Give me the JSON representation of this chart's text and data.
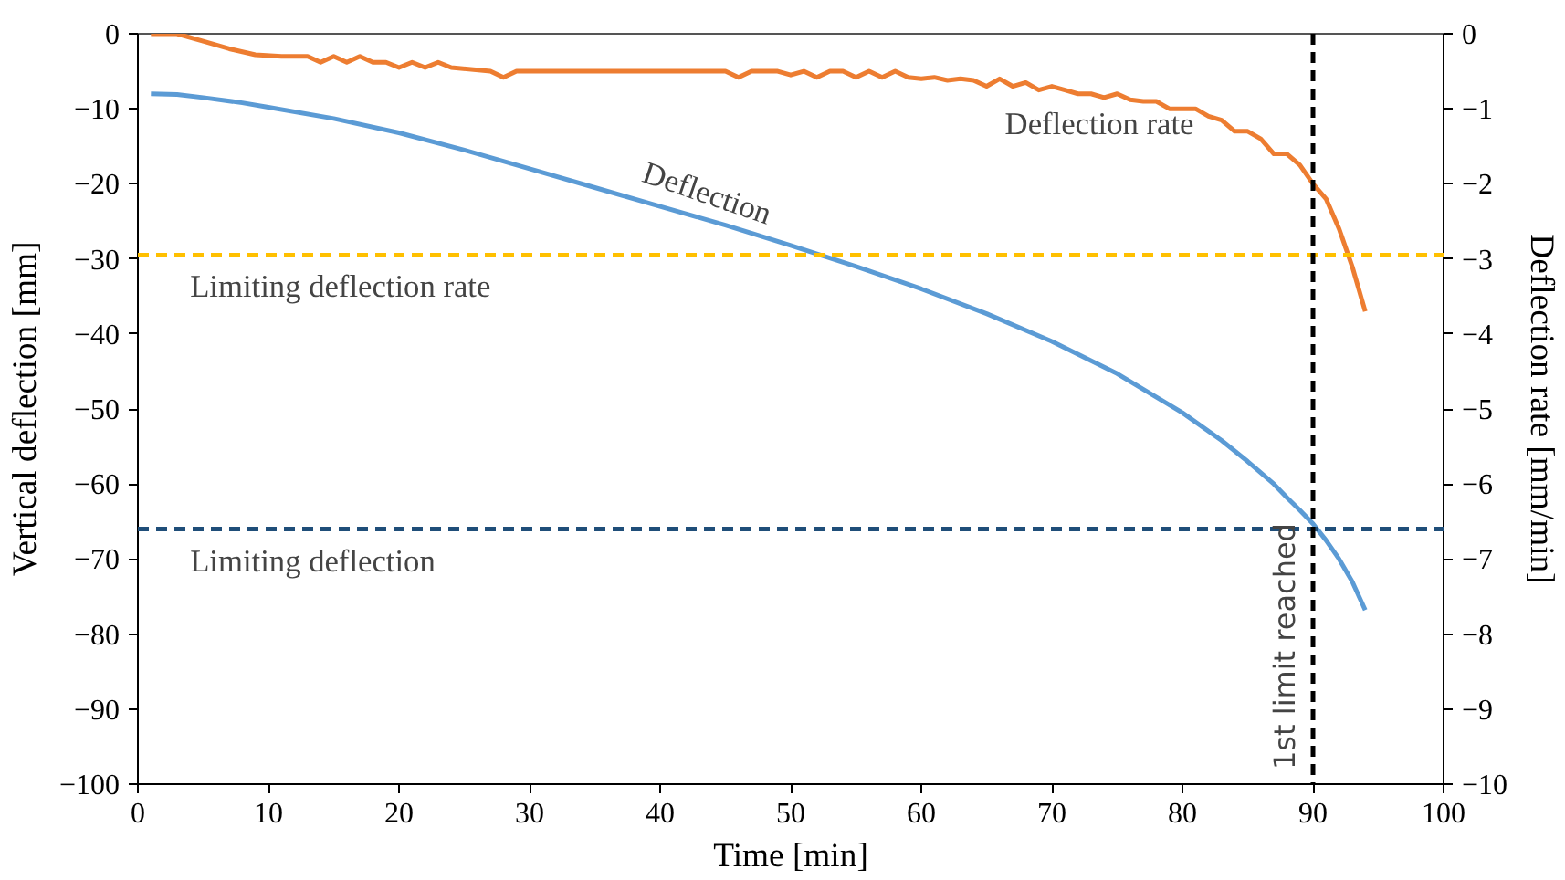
{
  "chart_data": {
    "type": "line",
    "xlabel": "Time [min]",
    "ylabel": "Vertical deflection [mm]",
    "y2label": "Deflection rate [mm/min]",
    "xlim": [
      0,
      100
    ],
    "xticks": [
      0,
      10,
      20,
      30,
      40,
      50,
      60,
      70,
      80,
      90,
      100
    ],
    "ylim": [
      -100,
      0
    ],
    "yticks": [
      -100,
      -90,
      -80,
      -70,
      -60,
      -50,
      -40,
      -30,
      -20,
      -10,
      0
    ],
    "y2lim": [
      -10,
      0
    ],
    "y2ticks": [
      -10,
      -9,
      -8,
      -7,
      -6,
      -5,
      -4,
      -3,
      -2,
      -1,
      0
    ],
    "grid": false,
    "marker": "none",
    "line_style": "solid",
    "series": [
      {
        "name": "Deflection",
        "color": "#5b9bd5",
        "x": [
          1,
          3,
          5,
          8,
          10,
          15,
          20,
          25,
          30,
          35,
          40,
          45,
          50,
          55,
          60,
          65,
          70,
          75,
          80,
          83,
          85,
          87,
          88,
          89,
          90,
          91,
          92,
          93,
          94
        ],
        "values": [
          -8,
          -8.1,
          -8.5,
          -9.2,
          -9.8,
          -11.3,
          -13.2,
          -15.5,
          -18,
          -20.5,
          -23,
          -25.5,
          -28.2,
          -31,
          -34,
          -37.3,
          -41,
          -45.3,
          -50.5,
          -54.2,
          -57,
          -60,
          -61.8,
          -63.5,
          -65.3,
          -67.5,
          -70,
          -73,
          -76.8
        ]
      },
      {
        "name": "Deflection rate",
        "color": "#ed7d31",
        "axis": "y2",
        "x": [
          1,
          3,
          5,
          7,
          9,
          11,
          12,
          13,
          14,
          15,
          16,
          17,
          18,
          19,
          20,
          21,
          22,
          23,
          24,
          27,
          28,
          29,
          35,
          36,
          45,
          46,
          47,
          49,
          50,
          51,
          52,
          53,
          54,
          55,
          56,
          57,
          58,
          59,
          60,
          61,
          62,
          63,
          64,
          65,
          66,
          67,
          68,
          69,
          70,
          71,
          72,
          73,
          74,
          75,
          76,
          77,
          78,
          79,
          80,
          81,
          82,
          83,
          84,
          85,
          86,
          87,
          88,
          89,
          90,
          91,
          92,
          93,
          94
        ],
        "values": [
          0,
          0,
          -0.1,
          -0.2,
          -0.28,
          -0.3,
          -0.3,
          -0.3,
          -0.38,
          -0.3,
          -0.38,
          -0.3,
          -0.38,
          -0.38,
          -0.45,
          -0.38,
          -0.45,
          -0.38,
          -0.45,
          -0.5,
          -0.58,
          -0.5,
          -0.5,
          -0.5,
          -0.5,
          -0.58,
          -0.5,
          -0.5,
          -0.55,
          -0.5,
          -0.58,
          -0.5,
          -0.5,
          -0.58,
          -0.5,
          -0.58,
          -0.5,
          -0.58,
          -0.6,
          -0.58,
          -0.62,
          -0.6,
          -0.62,
          -0.7,
          -0.6,
          -0.7,
          -0.65,
          -0.75,
          -0.7,
          -0.75,
          -0.8,
          -0.8,
          -0.85,
          -0.8,
          -0.88,
          -0.9,
          -0.9,
          -1.0,
          -1.0,
          -1.0,
          -1.1,
          -1.15,
          -1.3,
          -1.3,
          -1.4,
          -1.6,
          -1.6,
          -1.75,
          -2.0,
          -2.2,
          -2.6,
          -3.1,
          -3.7
        ]
      }
    ],
    "ref_lines": [
      {
        "axis": "y2",
        "value": -2.95,
        "label": "Limiting deflection rate",
        "color": "#ffc000",
        "line_style": "dashed"
      },
      {
        "axis": "y",
        "value": -66,
        "label": "Limiting deflection",
        "color": "#1f4e79",
        "line_style": "dashed"
      },
      {
        "axis": "x",
        "value": 90,
        "label": "1st limit reached",
        "color": "#000000",
        "line_style": "dashed"
      }
    ]
  }
}
